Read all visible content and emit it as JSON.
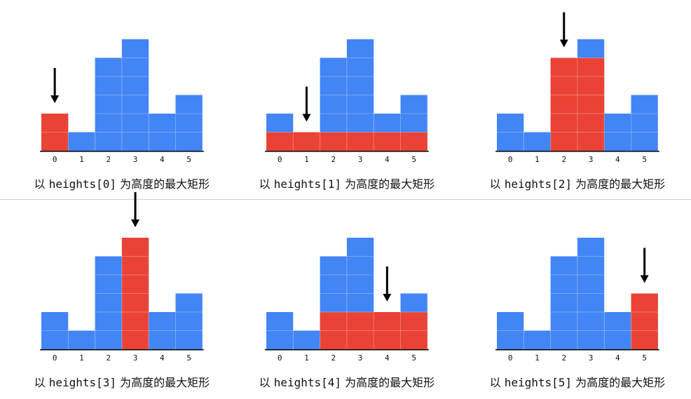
{
  "chart_data": {
    "type": "bar",
    "categories": [
      "0",
      "1",
      "2",
      "3",
      "4",
      "5"
    ],
    "heights": [
      2,
      1,
      5,
      6,
      2,
      3
    ],
    "colors": {
      "bar": "#4285F4",
      "highlight": "#EA4335",
      "cell_line": "#6EA0F6",
      "arrow": "#000000",
      "axis": "#000000",
      "divider": "#D0D0D0"
    },
    "panels": [
      {
        "index": 0,
        "arrow_on": 0,
        "rect_left": 0,
        "rect_right": 0,
        "rect_height": 2,
        "caption": {
          "prefix": "以 ",
          "code": "heights[0]",
          "suffix": " 为高度的最大矩形"
        }
      },
      {
        "index": 1,
        "arrow_on": 1,
        "rect_left": 0,
        "rect_right": 5,
        "rect_height": 1,
        "caption": {
          "prefix": "以 ",
          "code": "heights[1]",
          "suffix": " 为高度的最大矩形"
        }
      },
      {
        "index": 2,
        "arrow_on": 2,
        "rect_left": 2,
        "rect_right": 3,
        "rect_height": 5,
        "caption": {
          "prefix": "以 ",
          "code": "heights[2]",
          "suffix": " 为高度的最大矩形"
        }
      },
      {
        "index": 3,
        "arrow_on": 3,
        "rect_left": 3,
        "rect_right": 3,
        "rect_height": 6,
        "caption": {
          "prefix": "以 ",
          "code": "heights[3]",
          "suffix": " 为高度的最大矩形"
        }
      },
      {
        "index": 4,
        "arrow_on": 4,
        "rect_left": 2,
        "rect_right": 5,
        "rect_height": 2,
        "caption": {
          "prefix": "以 ",
          "code": "heights[4]",
          "suffix": " 为高度的最大矩形"
        }
      },
      {
        "index": 5,
        "arrow_on": 5,
        "rect_left": 5,
        "rect_right": 5,
        "rect_height": 3,
        "caption": {
          "prefix": "以 ",
          "code": "heights[5]",
          "suffix": " 为高度的最大矩形"
        }
      }
    ]
  }
}
